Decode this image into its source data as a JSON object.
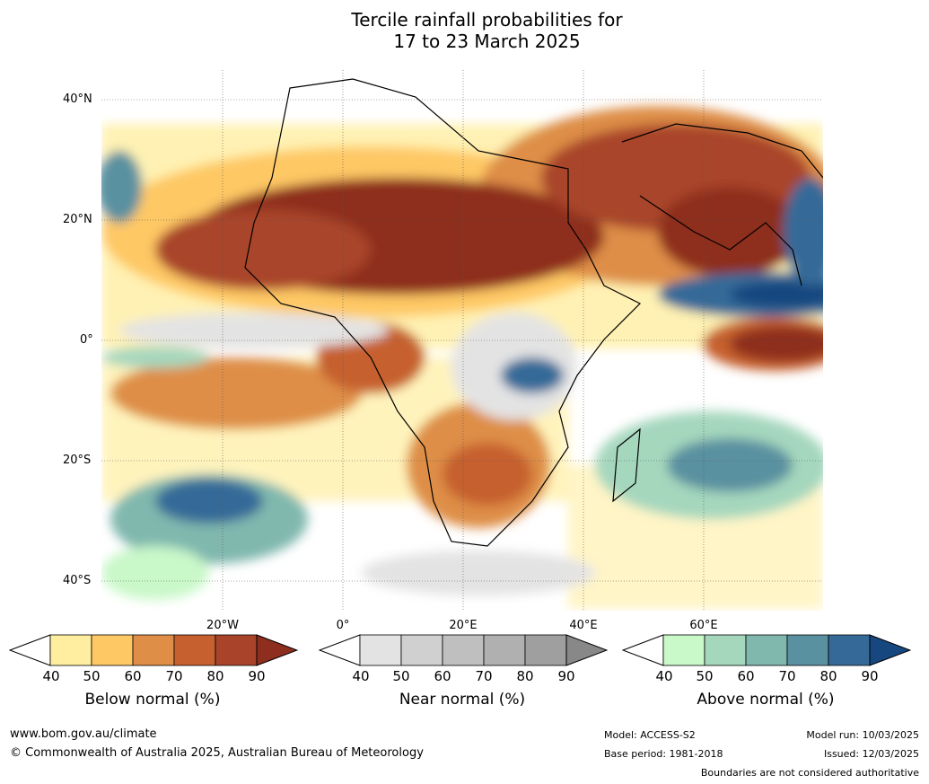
{
  "title_line1": "Tercile rainfall probabilities for",
  "title_line2": "17 to 23 March 2025",
  "lat_labels": [
    "40°N",
    "20°N",
    "0°",
    "20°S",
    "40°S"
  ],
  "lon_labels": [
    "20°W",
    "0°",
    "20°E",
    "40°E",
    "60°E"
  ],
  "legends": [
    {
      "label": "Below normal (%)",
      "ticks": [
        "40",
        "50",
        "60",
        "70",
        "80",
        "90"
      ],
      "colors": [
        "#ffeea0",
        "#fec865",
        "#de8e47",
        "#c6602e",
        "#a9442a",
        "#8e2e1e"
      ]
    },
    {
      "label": "Near normal (%)",
      "ticks": [
        "40",
        "50",
        "60",
        "70",
        "80",
        "90"
      ],
      "colors": [
        "#e3e3e3",
        "#d0d0d0",
        "#bfbfbf",
        "#b0b0b0",
        "#9f9f9f",
        "#888888"
      ]
    },
    {
      "label": "Above normal (%)",
      "ticks": [
        "40",
        "50",
        "60",
        "70",
        "80",
        "90"
      ],
      "colors": [
        "#c9f8c9",
        "#a5d7bd",
        "#80b8ae",
        "#5a91a0",
        "#356a98",
        "#17477f"
      ]
    }
  ],
  "footer": {
    "website": "www.bom.gov.au/climate",
    "copyright": "© Commonwealth of Australia 2025, Australian Bureau of Meteorology",
    "model": "Model: ACCESS-S2",
    "base_period": "Base period: 1981-2018",
    "model_run": "Model run: 10/03/2025",
    "issued": "Issued: 12/03/2025",
    "disclaimer": "Boundaries are not considered authoritative"
  }
}
